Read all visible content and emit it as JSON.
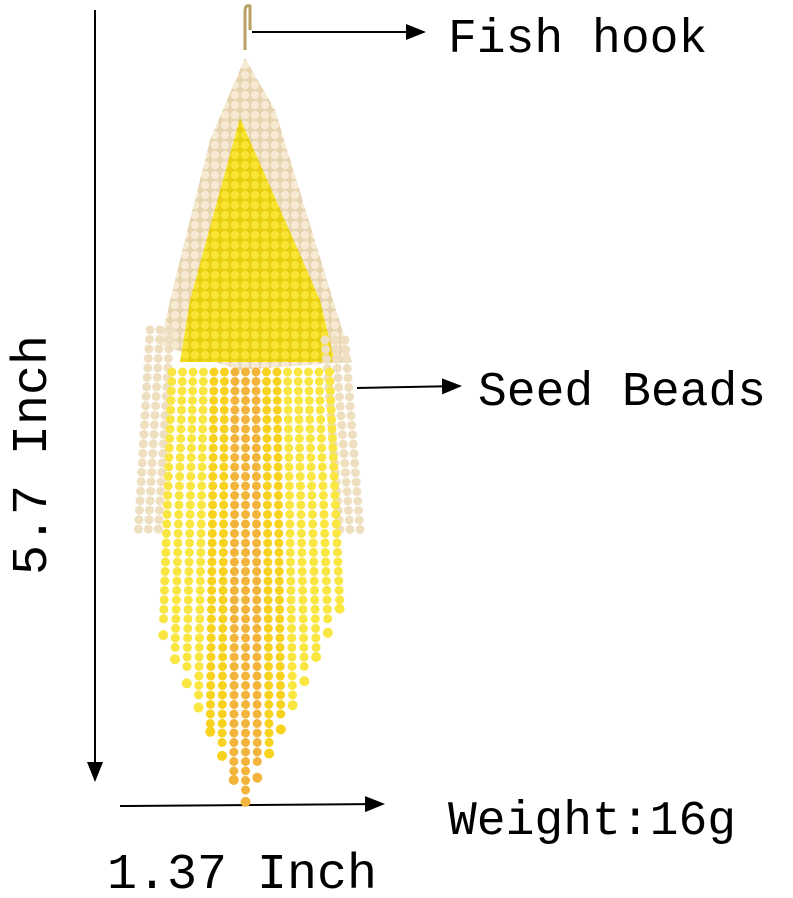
{
  "labels": {
    "fish_hook": "Fish hook",
    "seed_beads": "Seed Beads",
    "height": "5.7 Inch",
    "width": "1.37 Inch",
    "weight": "Weight:16g"
  }
}
